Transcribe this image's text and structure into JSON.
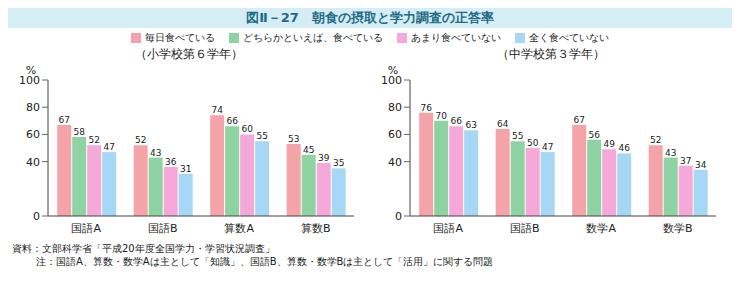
{
  "title": "図Ⅱ－27　朝食の摂取と学力調査の正答率",
  "notes": [
    "資料：文部科学省「平成20年度全国学力・学習状況調査」",
    "注：国語A、算数・数学Aは主として「知識」、国語B、算数・数学Bは主として「活用」に関する問題"
  ],
  "chart_data": [
    {
      "type": "bar",
      "title": "（小学校第６学年）",
      "ylabel": "%",
      "categories": [
        "国語A",
        "国語B",
        "算数A",
        "算数B"
      ],
      "series": [
        {
          "name": "毎日食べている",
          "color": "#f4a3a8",
          "values": [
            67,
            52,
            74,
            53
          ]
        },
        {
          "name": "どちらかといえば、食べている",
          "color": "#8fd3a3",
          "values": [
            58,
            43,
            66,
            45
          ]
        },
        {
          "name": "あまり食べていない",
          "color": "#f5a9d9",
          "values": [
            52,
            36,
            60,
            39
          ]
        },
        {
          "name": "全く食べていない",
          "color": "#a6d7f4",
          "values": [
            47,
            31,
            55,
            35
          ]
        }
      ],
      "ylim": [
        0,
        100
      ],
      "yticks": [
        0,
        40,
        60,
        80,
        100
      ],
      "grid": false,
      "data_labels": true,
      "legend": "top"
    },
    {
      "type": "bar",
      "title": "（中学校第３学年）",
      "ylabel": "%",
      "categories": [
        "国語A",
        "国語B",
        "数学A",
        "数学B"
      ],
      "series": [
        {
          "name": "毎日食べている",
          "color": "#f4a3a8",
          "values": [
            76,
            64,
            67,
            52
          ]
        },
        {
          "name": "どちらかといえば、食べている",
          "color": "#8fd3a3",
          "values": [
            70,
            55,
            56,
            43
          ]
        },
        {
          "name": "あまり食べていない",
          "color": "#f5a9d9",
          "values": [
            66,
            50,
            49,
            37
          ]
        },
        {
          "name": "全く食べていない",
          "color": "#a6d7f4",
          "values": [
            63,
            47,
            46,
            34
          ]
        }
      ],
      "ylim": [
        0,
        100
      ],
      "yticks": [
        0,
        40,
        60,
        80,
        100
      ],
      "grid": false,
      "data_labels": true
    }
  ]
}
